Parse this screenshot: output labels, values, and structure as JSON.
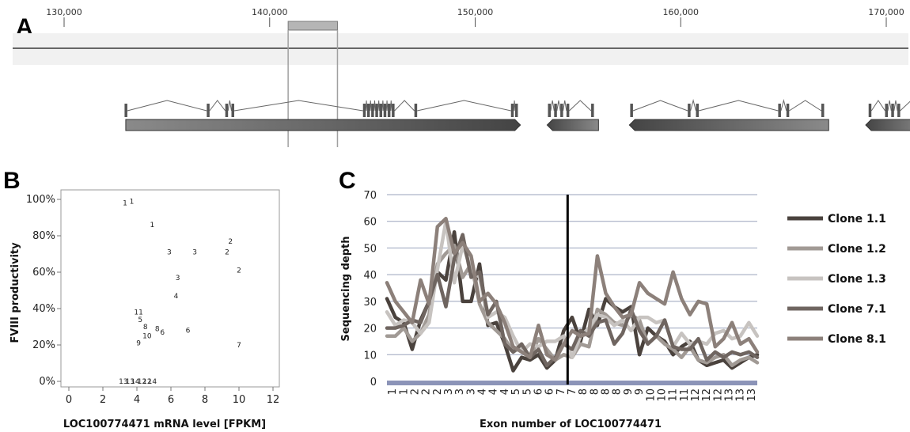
{
  "panels": {
    "a": "A",
    "b": "B",
    "c": "C"
  },
  "chart_data": [
    {
      "type": "other",
      "panel": "A",
      "axis": {
        "ticks": [
          130000,
          140000,
          150000,
          160000,
          170000
        ],
        "tick_labels": [
          "130,000",
          "140,000",
          "150,000",
          "160,000",
          "170,000"
        ]
      },
      "highlight_region": [
        140900,
        143300
      ],
      "genes": [
        {
          "start": 133000,
          "end": 152200,
          "strand": "+",
          "exons": [
            133000,
            137000,
            137900,
            138200,
            144600,
            144800,
            145000,
            145200,
            145400,
            145600,
            145800,
            146000,
            147100,
            151800,
            152000
          ]
        },
        {
          "start": 153500,
          "end": 156000,
          "strand": "-",
          "exons": [
            153600,
            153900,
            154200,
            154500,
            155700
          ]
        },
        {
          "start": 157500,
          "end": 167200,
          "strand": "-",
          "exons": [
            157600,
            160400,
            160800,
            164800,
            165200,
            166900
          ]
        },
        {
          "start": 169000,
          "end": 172000,
          "strand": "-",
          "exons": [
            169200,
            170000,
            170300,
            170600,
            171800
          ]
        }
      ]
    },
    {
      "type": "scatter",
      "panel": "B",
      "xlabel": "LOC100774471 mRNA level [FPKM]",
      "ylabel": "FVIII productivity",
      "xlim": [
        0,
        12
      ],
      "ylim": [
        0,
        1
      ],
      "xticks": [
        "0",
        "2",
        "4",
        "6",
        "8",
        "10",
        "12"
      ],
      "yticks": [
        "0%",
        "20%",
        "40%",
        "60%",
        "80%",
        "100%"
      ],
      "points": [
        {
          "label": "1",
          "x": 3.3,
          "y": 0.98
        },
        {
          "label": "1",
          "x": 3.7,
          "y": 0.99
        },
        {
          "label": "1",
          "x": 4.9,
          "y": 0.86
        },
        {
          "label": "2",
          "x": 9.5,
          "y": 0.77
        },
        {
          "label": "2",
          "x": 9.3,
          "y": 0.71
        },
        {
          "label": "2",
          "x": 10.0,
          "y": 0.61
        },
        {
          "label": "3",
          "x": 5.9,
          "y": 0.71
        },
        {
          "label": "3",
          "x": 7.4,
          "y": 0.71
        },
        {
          "label": "3",
          "x": 6.4,
          "y": 0.57
        },
        {
          "label": "4",
          "x": 6.3,
          "y": 0.47
        },
        {
          "label": "11",
          "x": 4.1,
          "y": 0.38
        },
        {
          "label": "5",
          "x": 4.2,
          "y": 0.34
        },
        {
          "label": "8",
          "x": 4.5,
          "y": 0.3
        },
        {
          "label": "8",
          "x": 5.2,
          "y": 0.29
        },
        {
          "label": "6",
          "x": 5.5,
          "y": 0.27
        },
        {
          "label": "6",
          "x": 7.0,
          "y": 0.28
        },
        {
          "label": "10",
          "x": 4.6,
          "y": 0.25
        },
        {
          "label": "9",
          "x": 4.1,
          "y": 0.21
        },
        {
          "label": "7",
          "x": 10.0,
          "y": 0.2
        },
        {
          "label": "13",
          "x": 3.2,
          "y": 0.0
        },
        {
          "label": "13",
          "x": 3.6,
          "y": 0.0
        },
        {
          "label": "14",
          "x": 3.9,
          "y": 0.0
        },
        {
          "label": "12",
          "x": 4.3,
          "y": 0.0
        },
        {
          "label": "12",
          "x": 4.6,
          "y": 0.0
        },
        {
          "label": "14",
          "x": 4.9,
          "y": 0.0
        }
      ]
    },
    {
      "type": "line",
      "panel": "C",
      "xlabel": "Exon number of LOC100774471",
      "ylabel": "Sequencing depth",
      "ylim": [
        0,
        70
      ],
      "yticks": [
        "0",
        "10",
        "20",
        "30",
        "40",
        "50",
        "60",
        "70"
      ],
      "xtick_labels": [
        "1",
        "1",
        "2",
        "2",
        "2",
        "3",
        "3",
        "3",
        "4",
        "4",
        "4",
        "5",
        "5",
        "6",
        "6",
        "7",
        "7",
        "8",
        "8",
        "8",
        "8",
        "9",
        "9",
        "10",
        "10",
        "11",
        "11",
        "12",
        "12",
        "12",
        "13",
        "13",
        "13"
      ],
      "vline_position": 15.6,
      "series": [
        {
          "name": "Clone 1.1",
          "color": "#4a423d",
          "values": [
            31,
            24,
            22,
            12,
            23,
            30,
            41,
            38,
            56,
            30,
            30,
            44,
            21,
            22,
            14,
            4,
            9,
            8,
            10,
            5,
            8,
            19,
            24,
            15,
            27,
            21,
            31,
            28,
            26,
            28,
            10,
            20,
            17,
            15,
            10,
            13,
            15,
            8,
            6,
            7,
            8,
            5,
            7,
            9,
            10
          ]
        },
        {
          "name": "Clone 1.2",
          "color": "#a19a95",
          "values": [
            17,
            17,
            20,
            15,
            18,
            25,
            44,
            48,
            51,
            39,
            44,
            29,
            22,
            19,
            16,
            11,
            13,
            9,
            16,
            12,
            8,
            10,
            9,
            14,
            13,
            27,
            25,
            22,
            21,
            25,
            23,
            14,
            17,
            14,
            12,
            9,
            13,
            8,
            7,
            9,
            10,
            6,
            8,
            9,
            7
          ]
        },
        {
          "name": "Clone 1.3",
          "color": "#c7c3c0",
          "values": [
            26,
            21,
            23,
            22,
            18,
            22,
            42,
            60,
            37,
            51,
            42,
            39,
            24,
            26,
            24,
            17,
            11,
            14,
            13,
            15,
            15,
            17,
            9,
            17,
            20,
            25,
            24,
            21,
            23,
            19,
            24,
            24,
            22,
            23,
            13,
            18,
            14,
            15,
            14,
            18,
            19,
            16,
            17,
            22,
            17
          ]
        },
        {
          "name": "Clone 7.1",
          "color": "#6f6560",
          "values": [
            20,
            20,
            21,
            23,
            22,
            30,
            40,
            28,
            46,
            55,
            39,
            41,
            25,
            30,
            14,
            11,
            14,
            9,
            12,
            6,
            9,
            14,
            12,
            19,
            17,
            22,
            23,
            14,
            18,
            27,
            19,
            14,
            17,
            23,
            13,
            12,
            12,
            16,
            8,
            11,
            9,
            11,
            10,
            11,
            9
          ]
        },
        {
          "name": "Clone 8.1",
          "color": "#8c807a",
          "values": [
            37,
            30,
            26,
            22,
            38,
            29,
            58,
            61,
            48,
            52,
            47,
            30,
            33,
            29,
            22,
            13,
            11,
            9,
            21,
            10,
            8,
            14,
            19,
            17,
            18,
            47,
            33,
            28,
            24,
            25,
            37,
            33,
            31,
            29,
            41,
            31,
            25,
            30,
            29,
            13,
            16,
            22,
            14,
            16,
            11
          ]
        }
      ]
    }
  ]
}
